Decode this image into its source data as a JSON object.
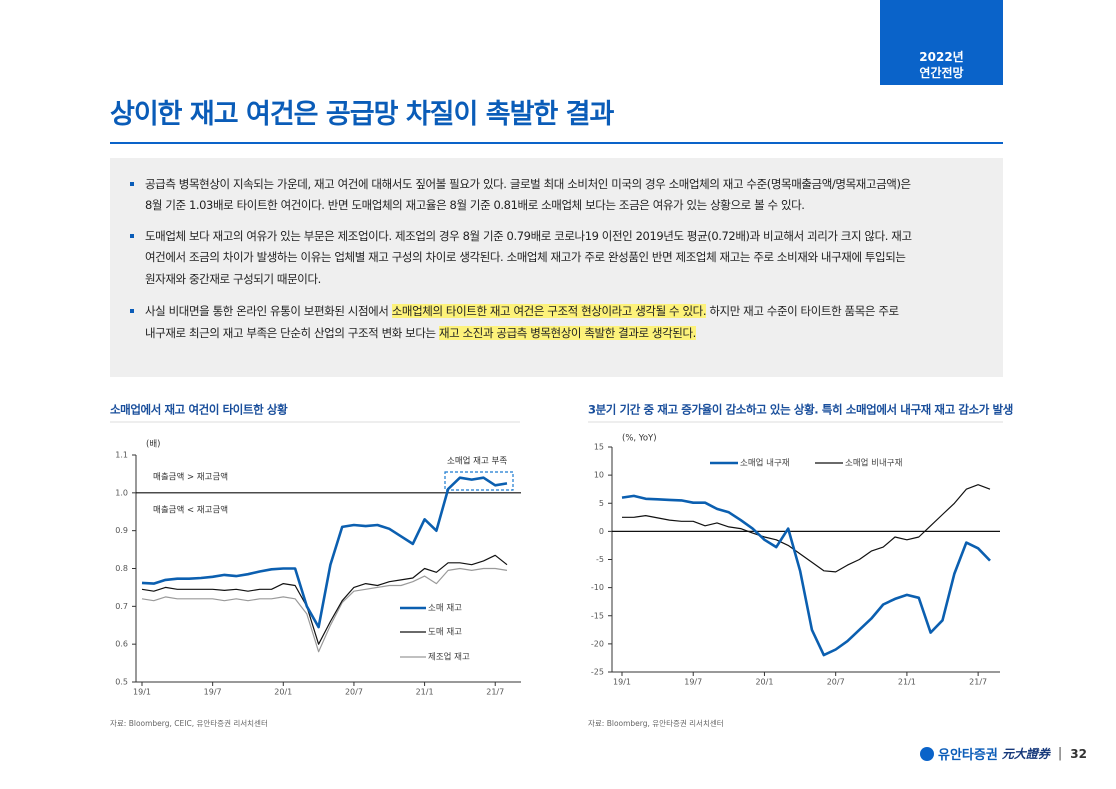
{
  "header": {
    "badge": [
      "2022년",
      "연간전망"
    ],
    "title": "상이한 재고 여건은 공급망 차질이 촉발한 결과"
  },
  "bullets": [
    {
      "lines": [
        [
          {
            "text": "공급측 병목현상이 지속되는 가운데, 재고 여건에 대해서도 짚어볼 필요가 있다. 글로벌 최대 소비처인 미국의 경우 소매업체의 재고 수준(명목매출금액/명목재고금액)은"
          }
        ],
        [
          {
            "text": "8월 기준 1.03배로 타이트한 여건이다. 반면 도매업체의 재고율은 8월 기준 0.81배로 소매업체 보다는 조금은 여유가 있는 상황으로 볼 수 있다."
          }
        ]
      ]
    },
    {
      "lines": [
        [
          {
            "text": "도매업체 보다 재고의 여유가 있는 부문은 제조업이다. 제조업의 경우 8월 기준 0.79배로 코로나19 이전인 2019년도 평균(0.72배)과 비교해서 괴리가 크지 않다. 재고"
          }
        ],
        [
          {
            "text": "여건에서 조금의 차이가 발생하는 이유는 업체별 재고 구성의 차이로 생각된다. 소매업체 재고가 주로 완성품인 반면 제조업체 재고는 주로 소비재와 내구재에 투입되는"
          }
        ],
        [
          {
            "text": "원자재와 중간재로 구성되기 때문이다."
          }
        ]
      ]
    },
    {
      "lines": [
        [
          {
            "text": "사실 비대면을 통한 온라인 유통이 보편화된 시점에서 "
          },
          {
            "text": "소매업체의 타이트한 재고 여건은 구조적 현상이라고 생각될 수 있다.",
            "highlight": true
          },
          {
            "text": " 하지만 재고 수준이 타이트한 품목은 주로"
          }
        ],
        [
          {
            "text": "내구재로 최근의 재고 부족은 단순히 산업의 구조적 변화 보다는 "
          },
          {
            "text": "재고 소진과 공급측 병목현상이 촉발한 결과로 생각된다.",
            "highlight": true
          }
        ]
      ]
    }
  ],
  "chart_data": [
    {
      "type": "line",
      "title": "소매업에서 재고 여건이 타이트한 상황",
      "source": "자료: Bloomberg, CEIC, 유안타증권 리서치센터",
      "annotations": [
        "(배)",
        "매출금액 > 재고금액",
        "매출금액 < 재고금액",
        "소매업 재고 부족"
      ],
      "categories": [
        "19/1",
        null,
        null,
        null,
        null,
        null,
        "19/7",
        null,
        null,
        null,
        null,
        null,
        "20/1",
        null,
        null,
        null,
        null,
        null,
        "20/7",
        null,
        null,
        null,
        null,
        null,
        "21/1",
        null,
        null,
        null,
        null,
        null,
        "21/7",
        null
      ],
      "series": [
        {
          "name": "소매 재고",
          "color": "#0b5fb0",
          "values": [
            0.762,
            0.76,
            0.77,
            0.773,
            0.773,
            0.775,
            0.778,
            0.783,
            0.78,
            0.785,
            0.792,
            0.798,
            0.8,
            0.8,
            0.7,
            0.645,
            0.81,
            0.91,
            0.915,
            0.912,
            0.915,
            0.905,
            0.885,
            0.865,
            0.93,
            0.9,
            1.01,
            1.04,
            1.035,
            1.04,
            1.02,
            1.025
          ]
        },
        {
          "name": "도매 재고",
          "color": "#111111",
          "values": [
            0.745,
            0.74,
            0.75,
            0.745,
            0.745,
            0.745,
            0.745,
            0.742,
            0.745,
            0.74,
            0.745,
            0.745,
            0.76,
            0.755,
            0.7,
            0.6,
            0.66,
            0.715,
            0.75,
            0.76,
            0.755,
            0.765,
            0.77,
            0.775,
            0.8,
            0.79,
            0.815,
            0.815,
            0.81,
            0.82,
            0.835,
            0.81
          ]
        },
        {
          "name": "제조업 재고",
          "color": "#9a9a9a",
          "values": [
            0.72,
            0.715,
            0.725,
            0.72,
            0.72,
            0.72,
            0.72,
            0.715,
            0.72,
            0.715,
            0.72,
            0.72,
            0.725,
            0.72,
            0.68,
            0.58,
            0.65,
            0.71,
            0.74,
            0.745,
            0.75,
            0.755,
            0.755,
            0.765,
            0.78,
            0.76,
            0.795,
            0.8,
            0.795,
            0.8,
            0.8,
            0.795
          ]
        }
      ],
      "ylim": [
        0.5,
        1.1
      ],
      "yticks": [
        0.5,
        0.6,
        0.7,
        0.8,
        0.9,
        {
          "value": 1,
          "label": "1.0"
        },
        1.1
      ],
      "reference_line": 1,
      "legend": "bottom-right"
    },
    {
      "type": "line",
      "title": "3분기 기간 중 재고 증가율이 감소하고 있는 상황. 특히 소매업에서 내구재 재고 감소가 발생",
      "source": "자료: Bloomberg, 유안타증권 리서치센터",
      "annotations": [
        "(%, YoY)"
      ],
      "categories": [
        "19/1",
        null,
        null,
        null,
        null,
        null,
        "19/7",
        null,
        null,
        null,
        null,
        null,
        "20/1",
        null,
        null,
        null,
        null,
        null,
        "20/7",
        null,
        null,
        null,
        null,
        null,
        "21/1",
        null,
        null,
        null,
        null,
        null,
        "21/7",
        null
      ],
      "series": [
        {
          "name": "소매업 내구재",
          "color": "#0b5fb0",
          "values": [
            6.0,
            6.3,
            5.8,
            5.7,
            5.6,
            5.5,
            5.1,
            5.1,
            4.0,
            3.4,
            2.0,
            0.5,
            -1.5,
            -2.8,
            0.5,
            -7,
            -17.5,
            -22,
            -21,
            -19.5,
            -17.5,
            -15.5,
            -13,
            -12,
            -11.3,
            -11.8,
            -18,
            -15.8,
            -7.5,
            -2,
            -3,
            -5.2
          ]
        },
        {
          "name": "소매업 비내구재",
          "color": "#111111",
          "values": [
            2.5,
            2.5,
            2.8,
            2.4,
            2.0,
            1.8,
            1.8,
            1.0,
            1.5,
            0.8,
            0.5,
            -0.3,
            -1.0,
            -1.5,
            -2.5,
            -4,
            -5.5,
            -7,
            -7.2,
            -6,
            -5,
            -3.5,
            -2.8,
            -1,
            -1.5,
            -1,
            1,
            3,
            5,
            7.5,
            8.3,
            7.5
          ]
        }
      ],
      "ylim": [
        -25,
        15
      ],
      "yticks": [
        -25,
        -20,
        -15,
        -10,
        -5,
        0,
        5,
        10,
        15
      ],
      "reference_line": 0,
      "legend": "top"
    }
  ],
  "footer": {
    "company": "유안타증권",
    "company_hanja": "元大證券",
    "page": 32
  }
}
